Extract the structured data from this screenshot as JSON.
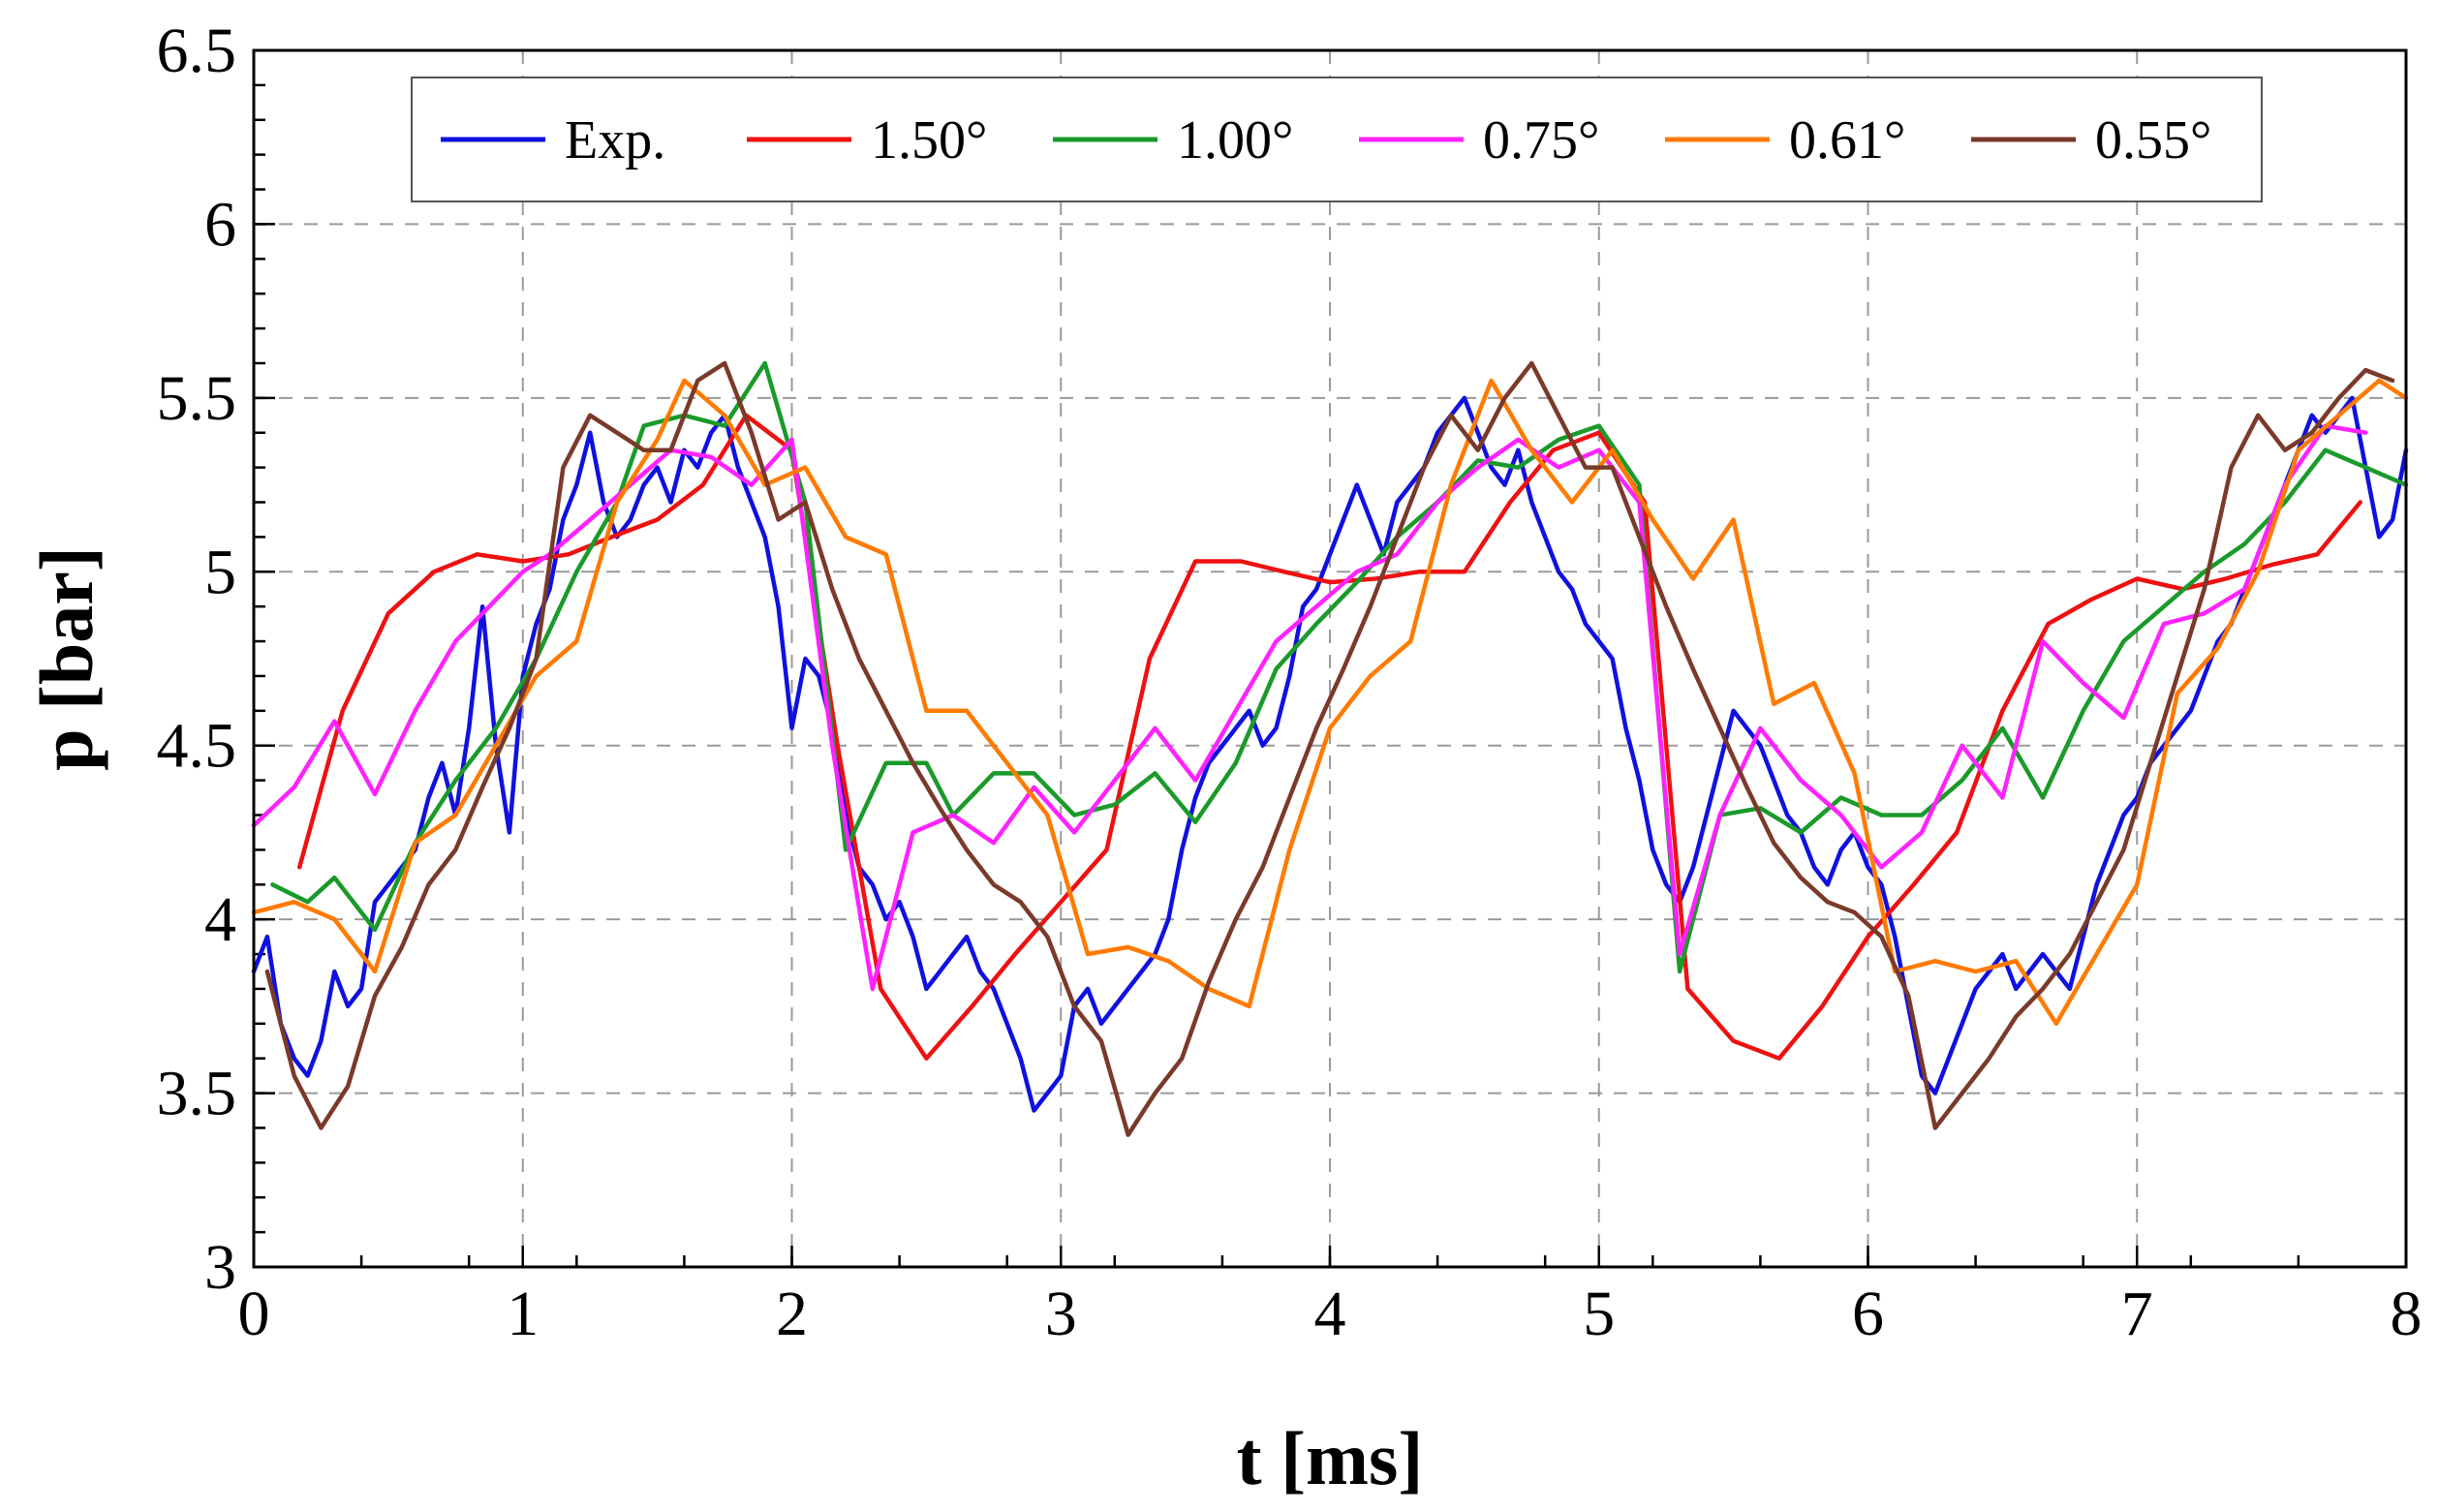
{
  "chart_data": {
    "type": "line",
    "title": "",
    "xlabel": "t [ms]",
    "ylabel": "p [bar]",
    "xlim": [
      0,
      8
    ],
    "ylim": [
      3,
      6.5
    ],
    "xticks": [
      "0",
      "1",
      "2",
      "3",
      "4",
      "5",
      "6",
      "7",
      "8"
    ],
    "yticks": [
      "3",
      "3.5",
      "4",
      "4.5",
      "5",
      "5.5",
      "6",
      "6.5"
    ],
    "grid": true,
    "legend_position": "top",
    "series": [
      {
        "name": "Exp.",
        "color": "#1010e0",
        "x": [
          0,
          0.05,
          0.1,
          0.15,
          0.2,
          0.25,
          0.3,
          0.35,
          0.4,
          0.45,
          0.5,
          0.55,
          0.6,
          0.65,
          0.7,
          0.75,
          0.8,
          0.85,
          0.9,
          0.95,
          1.0,
          1.05,
          1.1,
          1.15,
          1.2,
          1.25,
          1.3,
          1.35,
          1.4,
          1.45,
          1.5,
          1.55,
          1.6,
          1.65,
          1.7,
          1.75,
          1.8,
          1.85,
          1.9,
          1.95,
          2.0,
          2.05,
          2.1,
          2.15,
          2.2,
          2.25,
          2.3,
          2.35,
          2.4,
          2.45,
          2.5,
          2.55,
          2.6,
          2.65,
          2.7,
          2.75,
          2.8,
          2.85,
          2.9,
          2.95,
          3.0,
          3.05,
          3.1,
          3.15,
          3.2,
          3.25,
          3.3,
          3.35,
          3.4,
          3.45,
          3.5,
          3.55,
          3.6,
          3.65,
          3.7,
          3.75,
          3.8,
          3.85,
          3.9,
          3.95,
          4.0,
          4.05,
          4.1,
          4.15,
          4.2,
          4.25,
          4.3,
          4.35,
          4.4,
          4.45,
          4.5,
          4.55,
          4.6,
          4.65,
          4.7,
          4.75,
          4.8,
          4.85,
          4.9,
          4.95,
          5.0,
          5.05,
          5.1,
          5.15,
          5.2,
          5.25,
          5.3,
          5.35,
          5.4,
          5.45,
          5.5,
          5.55,
          5.6,
          5.65,
          5.7,
          5.75,
          5.8,
          5.85,
          5.9,
          5.95,
          6.0,
          6.05,
          6.1,
          6.15,
          6.2,
          6.25,
          6.3,
          6.35,
          6.4,
          6.45,
          6.5,
          6.55,
          6.6,
          6.65,
          6.7,
          6.75,
          6.8,
          6.85,
          6.9,
          6.95,
          7.0,
          7.05,
          7.1,
          7.15,
          7.2,
          7.25,
          7.3,
          7.35,
          7.4,
          7.45,
          7.5,
          7.55,
          7.6,
          7.65,
          7.7,
          7.75,
          7.8,
          7.85,
          7.9,
          7.95,
          8.0
        ],
        "y": [
          3.85,
          3.95,
          3.7,
          3.6,
          3.55,
          3.65,
          3.85,
          3.75,
          3.8,
          4.05,
          4.1,
          4.15,
          4.2,
          4.35,
          4.45,
          4.3,
          4.55,
          4.9,
          4.5,
          4.25,
          4.7,
          4.85,
          4.95,
          5.15,
          5.25,
          5.4,
          5.2,
          5.1,
          5.15,
          5.25,
          5.3,
          5.2,
          5.35,
          5.3,
          5.4,
          5.45,
          5.3,
          5.2,
          5.1,
          4.9,
          4.55,
          4.75,
          4.7,
          4.55,
          4.3,
          4.15,
          4.1,
          4.0,
          4.05,
          3.95,
          3.8,
          3.85,
          3.9,
          3.95,
          3.85,
          3.8,
          3.7,
          3.6,
          3.45,
          3.5,
          3.55,
          3.75,
          3.8,
          3.7,
          3.75,
          3.8,
          3.85,
          3.9,
          4.0,
          4.2,
          4.35,
          4.45,
          4.5,
          4.55,
          4.6,
          4.5,
          4.55,
          4.7,
          4.9,
          4.95,
          5.05,
          5.15,
          5.25,
          5.15,
          5.05,
          5.2,
          5.25,
          5.3,
          5.4,
          5.45,
          5.5,
          5.4,
          5.3,
          5.25,
          5.35,
          5.2,
          5.1,
          5.0,
          4.95,
          4.85,
          4.8,
          4.75,
          4.55,
          4.4,
          4.2,
          4.1,
          4.05,
          4.15,
          4.3,
          4.45,
          4.6,
          4.55,
          4.5,
          4.4,
          4.3,
          4.25,
          4.15,
          4.1,
          4.2,
          4.25,
          4.15,
          4.1,
          3.95,
          3.75,
          3.55,
          3.5,
          3.6,
          3.7,
          3.8,
          3.85,
          3.9,
          3.8,
          3.85,
          3.9,
          3.85,
          3.8,
          3.95,
          4.1,
          4.2,
          4.3,
          4.35,
          4.45,
          4.5,
          4.55,
          4.6,
          4.7,
          4.8,
          4.85,
          4.95,
          5.05,
          5.15,
          5.25,
          5.35,
          5.45,
          5.4,
          5.45,
          5.5,
          5.3,
          5.1,
          5.15,
          5.35
        ]
      },
      {
        "name": "1.50°",
        "color": "#ee1111",
        "x": [
          0.17,
          0.33,
          0.5,
          0.67,
          0.83,
          1.0,
          1.17,
          1.33,
          1.5,
          1.67,
          1.83,
          2.0,
          2.17,
          2.33,
          2.5,
          2.67,
          2.83,
          3.0,
          3.17,
          3.33,
          3.5,
          3.67,
          3.83,
          4.0,
          4.17,
          4.33,
          4.5,
          4.67,
          4.83,
          5.0,
          5.17,
          5.33,
          5.5,
          5.67,
          5.83,
          6.0,
          6.17,
          6.33,
          6.5,
          6.67,
          6.83,
          7.0,
          7.17,
          7.33,
          7.5,
          7.67,
          7.83
        ],
        "y": [
          4.15,
          4.6,
          4.88,
          5.0,
          5.05,
          5.03,
          5.05,
          5.1,
          5.15,
          5.25,
          5.45,
          5.35,
          4.5,
          3.8,
          3.6,
          3.75,
          3.9,
          4.05,
          4.2,
          4.75,
          5.03,
          5.03,
          5.0,
          4.97,
          4.98,
          5.0,
          5.0,
          5.2,
          5.35,
          5.4,
          5.2,
          3.8,
          3.65,
          3.6,
          3.75,
          3.95,
          4.1,
          4.25,
          4.6,
          4.85,
          4.92,
          4.98,
          4.95,
          4.98,
          5.02,
          5.05,
          5.2
        ]
      },
      {
        "name": "1.00°",
        "color": "#1a9a2a",
        "x": [
          0.07,
          0.2,
          0.3,
          0.45,
          0.6,
          0.75,
          0.9,
          1.05,
          1.2,
          1.35,
          1.45,
          1.6,
          1.75,
          1.9,
          2.05,
          2.2,
          2.35,
          2.5,
          2.6,
          2.75,
          2.9,
          3.05,
          3.2,
          3.35,
          3.5,
          3.65,
          3.8,
          3.95,
          4.1,
          4.25,
          4.4,
          4.55,
          4.7,
          4.85,
          5.0,
          5.15,
          5.3,
          5.45,
          5.6,
          5.75,
          5.9,
          6.05,
          6.2,
          6.35,
          6.5,
          6.65,
          6.8,
          6.95,
          7.1,
          7.25,
          7.4,
          7.55,
          7.7,
          7.85,
          8.0
        ],
        "y": [
          4.1,
          4.05,
          4.12,
          3.97,
          4.22,
          4.4,
          4.55,
          4.75,
          5.0,
          5.2,
          5.42,
          5.45,
          5.42,
          5.6,
          5.2,
          4.2,
          4.45,
          4.45,
          4.3,
          4.42,
          4.42,
          4.3,
          4.33,
          4.42,
          4.28,
          4.45,
          4.72,
          4.85,
          4.97,
          5.1,
          5.2,
          5.32,
          5.3,
          5.38,
          5.42,
          5.25,
          3.85,
          4.3,
          4.32,
          4.25,
          4.35,
          4.3,
          4.3,
          4.4,
          4.55,
          4.35,
          4.6,
          4.8,
          4.9,
          5.0,
          5.08,
          5.2,
          5.35,
          5.3,
          5.25
        ]
      },
      {
        "name": "0.75°",
        "color": "#ff22ff",
        "x": [
          0,
          0.15,
          0.3,
          0.45,
          0.6,
          0.75,
          0.9,
          1.0,
          1.1,
          1.25,
          1.4,
          1.55,
          1.7,
          1.85,
          2.0,
          2.15,
          2.3,
          2.45,
          2.6,
          2.75,
          2.9,
          3.05,
          3.2,
          3.35,
          3.5,
          3.65,
          3.8,
          3.95,
          4.1,
          4.25,
          4.4,
          4.55,
          4.7,
          4.85,
          5.0,
          5.15,
          5.3,
          5.45,
          5.6,
          5.75,
          5.9,
          6.05,
          6.2,
          6.35,
          6.5,
          6.65,
          6.8,
          6.95,
          7.1,
          7.25,
          7.4,
          7.55,
          7.7,
          7.85
        ],
        "y": [
          4.27,
          4.38,
          4.57,
          4.36,
          4.6,
          4.8,
          4.92,
          5.0,
          5.05,
          5.15,
          5.25,
          5.35,
          5.33,
          5.25,
          5.38,
          4.5,
          3.8,
          4.25,
          4.3,
          4.22,
          4.38,
          4.25,
          4.4,
          4.55,
          4.4,
          4.6,
          4.8,
          4.9,
          5.0,
          5.05,
          5.2,
          5.3,
          5.38,
          5.3,
          5.35,
          5.2,
          3.9,
          4.3,
          4.55,
          4.4,
          4.3,
          4.15,
          4.25,
          4.5,
          4.35,
          4.8,
          4.68,
          4.58,
          4.85,
          4.88,
          4.95,
          5.25,
          5.42,
          5.4
        ]
      },
      {
        "name": "0.61°",
        "color": "#ff7a00",
        "x": [
          0,
          0.15,
          0.3,
          0.45,
          0.6,
          0.75,
          0.9,
          1.05,
          1.2,
          1.35,
          1.5,
          1.6,
          1.75,
          1.9,
          2.05,
          2.2,
          2.35,
          2.5,
          2.65,
          2.8,
          2.95,
          3.1,
          3.25,
          3.4,
          3.55,
          3.7,
          3.85,
          4.0,
          4.15,
          4.3,
          4.45,
          4.6,
          4.75,
          4.9,
          5.05,
          5.2,
          5.35,
          5.5,
          5.65,
          5.8,
          5.95,
          6.1,
          6.25,
          6.4,
          6.55,
          6.7,
          6.85,
          7.0,
          7.15,
          7.3,
          7.45,
          7.6,
          7.75,
          7.9,
          8.0
        ],
        "y": [
          4.02,
          4.05,
          4.0,
          3.85,
          4.22,
          4.3,
          4.5,
          4.7,
          4.8,
          5.2,
          5.38,
          5.55,
          5.45,
          5.25,
          5.3,
          5.1,
          5.05,
          4.6,
          4.6,
          4.45,
          4.3,
          3.9,
          3.92,
          3.88,
          3.8,
          3.75,
          4.2,
          4.55,
          4.7,
          4.8,
          5.25,
          5.55,
          5.35,
          5.2,
          5.35,
          5.15,
          4.98,
          5.15,
          4.62,
          4.68,
          4.42,
          3.85,
          3.88,
          3.85,
          3.88,
          3.7,
          3.9,
          4.1,
          4.65,
          4.78,
          5.0,
          5.35,
          5.45,
          5.55,
          5.5
        ]
      },
      {
        "name": "0.55°",
        "color": "#7a3a2a",
        "x": [
          0.05,
          0.15,
          0.25,
          0.35,
          0.45,
          0.55,
          0.65,
          0.75,
          0.85,
          0.95,
          1.05,
          1.15,
          1.25,
          1.35,
          1.45,
          1.55,
          1.65,
          1.75,
          1.85,
          1.95,
          2.05,
          2.15,
          2.25,
          2.35,
          2.45,
          2.55,
          2.65,
          2.75,
          2.85,
          2.95,
          3.05,
          3.15,
          3.25,
          3.35,
          3.45,
          3.55,
          3.65,
          3.75,
          3.85,
          3.95,
          4.05,
          4.15,
          4.25,
          4.35,
          4.45,
          4.55,
          4.65,
          4.75,
          4.85,
          4.95,
          5.05,
          5.15,
          5.25,
          5.35,
          5.45,
          5.55,
          5.65,
          5.75,
          5.85,
          5.95,
          6.05,
          6.15,
          6.25,
          6.35,
          6.45,
          6.55,
          6.65,
          6.75,
          6.85,
          6.95,
          7.05,
          7.15,
          7.25,
          7.35,
          7.45,
          7.55,
          7.65,
          7.75,
          7.85,
          7.95
        ],
        "y": [
          3.85,
          3.55,
          3.4,
          3.52,
          3.78,
          3.92,
          4.1,
          4.2,
          4.38,
          4.55,
          4.75,
          5.3,
          5.45,
          5.4,
          5.35,
          5.35,
          5.55,
          5.6,
          5.4,
          5.15,
          5.2,
          4.95,
          4.75,
          4.6,
          4.45,
          4.32,
          4.2,
          4.1,
          4.05,
          3.95,
          3.75,
          3.65,
          3.38,
          3.5,
          3.6,
          3.82,
          4.0,
          4.15,
          4.35,
          4.55,
          4.72,
          4.9,
          5.1,
          5.3,
          5.45,
          5.35,
          5.5,
          5.6,
          5.45,
          5.3,
          5.3,
          5.1,
          4.9,
          4.72,
          4.55,
          4.38,
          4.22,
          4.12,
          4.05,
          4.02,
          3.95,
          3.78,
          3.4,
          3.5,
          3.6,
          3.72,
          3.8,
          3.9,
          4.05,
          4.2,
          4.45,
          4.7,
          4.95,
          5.3,
          5.45,
          5.35,
          5.4,
          5.5,
          5.58,
          5.55
        ]
      }
    ]
  }
}
